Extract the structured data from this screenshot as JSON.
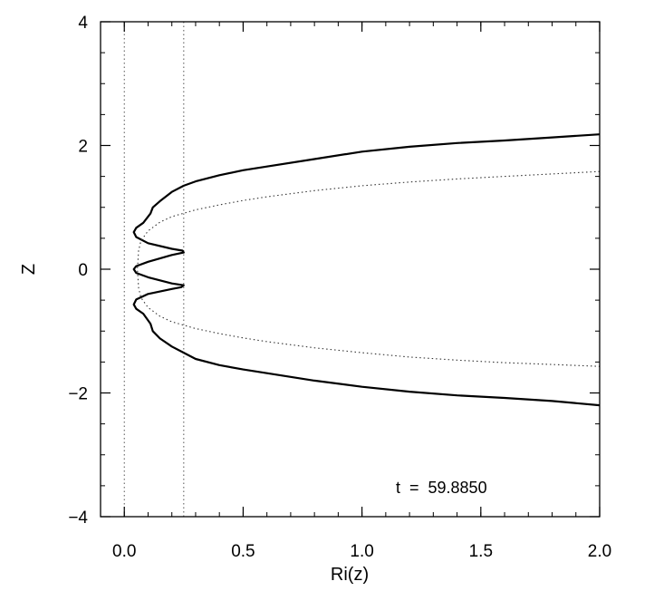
{
  "chart_data": {
    "type": "line",
    "xlabel": "Ri(z)",
    "ylabel": "Z",
    "xlim": [
      -0.1,
      2.0
    ],
    "ylim": [
      -4,
      4
    ],
    "x_ticks": [
      0.0,
      0.5,
      1.0,
      1.5,
      2.0
    ],
    "x_tick_labels": [
      "0.0",
      "0.5",
      "1.0",
      "1.5",
      "2.0"
    ],
    "y_ticks": [
      -4,
      -2,
      0,
      2,
      4
    ],
    "y_tick_labels": [
      "−4",
      "−2",
      "0",
      "2",
      "4"
    ],
    "grid": false,
    "annotation": "t  =  59.8850",
    "series": [
      {
        "style": "solid",
        "points": [
          [
            2.0,
            2.18
          ],
          [
            1.8,
            2.13
          ],
          [
            1.6,
            2.08
          ],
          [
            1.4,
            2.04
          ],
          [
            1.2,
            1.98
          ],
          [
            1.0,
            1.9
          ],
          [
            0.8,
            1.78
          ],
          [
            0.6,
            1.66
          ],
          [
            0.5,
            1.6
          ],
          [
            0.4,
            1.52
          ],
          [
            0.3,
            1.42
          ],
          [
            0.25,
            1.35
          ],
          [
            0.2,
            1.25
          ],
          [
            0.15,
            1.1
          ],
          [
            0.12,
            1.0
          ],
          [
            0.11,
            0.9
          ],
          [
            0.08,
            0.75
          ],
          [
            0.05,
            0.67
          ],
          [
            0.04,
            0.6
          ],
          [
            0.05,
            0.52
          ],
          [
            0.1,
            0.42
          ],
          [
            0.2,
            0.33
          ],
          [
            0.245,
            0.3
          ],
          [
            0.25,
            0.27
          ],
          [
            0.2,
            0.23
          ],
          [
            0.1,
            0.12
          ],
          [
            0.05,
            0.05
          ],
          [
            0.04,
            0.0
          ],
          [
            0.05,
            -0.06
          ],
          [
            0.1,
            -0.13
          ],
          [
            0.2,
            -0.23
          ],
          [
            0.25,
            -0.26
          ],
          [
            0.24,
            -0.29
          ],
          [
            0.2,
            -0.32
          ],
          [
            0.1,
            -0.4
          ],
          [
            0.05,
            -0.49
          ],
          [
            0.04,
            -0.57
          ],
          [
            0.05,
            -0.64
          ],
          [
            0.08,
            -0.72
          ],
          [
            0.11,
            -0.88
          ],
          [
            0.12,
            -1.0
          ],
          [
            0.15,
            -1.12
          ],
          [
            0.2,
            -1.25
          ],
          [
            0.25,
            -1.35
          ],
          [
            0.3,
            -1.45
          ],
          [
            0.4,
            -1.55
          ],
          [
            0.5,
            -1.62
          ],
          [
            0.6,
            -1.68
          ],
          [
            0.8,
            -1.8
          ],
          [
            1.0,
            -1.9
          ],
          [
            1.2,
            -1.98
          ],
          [
            1.4,
            -2.04
          ],
          [
            1.6,
            -2.08
          ],
          [
            1.8,
            -2.13
          ],
          [
            2.0,
            -2.2
          ]
        ]
      },
      {
        "style": "dotted",
        "points": [
          [
            2.0,
            1.58
          ],
          [
            1.8,
            1.54
          ],
          [
            1.6,
            1.5
          ],
          [
            1.4,
            1.46
          ],
          [
            1.2,
            1.41
          ],
          [
            1.0,
            1.35
          ],
          [
            0.8,
            1.27
          ],
          [
            0.6,
            1.17
          ],
          [
            0.5,
            1.11
          ],
          [
            0.4,
            1.04
          ],
          [
            0.3,
            0.96
          ],
          [
            0.2,
            0.85
          ],
          [
            0.15,
            0.76
          ],
          [
            0.1,
            0.62
          ],
          [
            0.07,
            0.46
          ],
          [
            0.06,
            0.3
          ],
          [
            0.055,
            0.0
          ],
          [
            0.06,
            -0.3
          ],
          [
            0.07,
            -0.46
          ],
          [
            0.1,
            -0.62
          ],
          [
            0.15,
            -0.76
          ],
          [
            0.2,
            -0.85
          ],
          [
            0.3,
            -0.96
          ],
          [
            0.4,
            -1.04
          ],
          [
            0.5,
            -1.11
          ],
          [
            0.6,
            -1.17
          ],
          [
            0.8,
            -1.27
          ],
          [
            1.0,
            -1.35
          ],
          [
            1.2,
            -1.42
          ],
          [
            1.4,
            -1.47
          ],
          [
            1.6,
            -1.51
          ],
          [
            1.8,
            -1.54
          ],
          [
            2.0,
            -1.57
          ]
        ]
      }
    ],
    "reference_lines": [
      {
        "axis": "x",
        "value": 0.0,
        "style": "dotted"
      },
      {
        "axis": "x",
        "value": 0.25,
        "style": "dotted"
      }
    ]
  }
}
